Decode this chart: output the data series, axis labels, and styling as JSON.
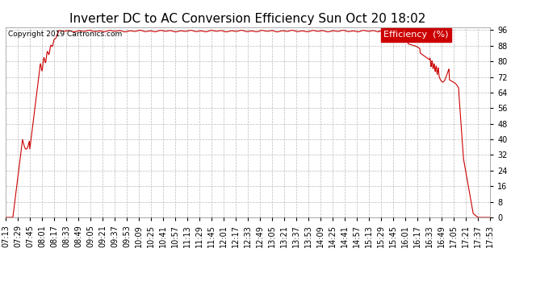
{
  "title": "Inverter DC to AC Conversion Efficiency Sun Oct 20 18:02",
  "copyright": "Copyright 2019 Cartronics.com",
  "legend_label": "Efficiency  (%)",
  "line_color": "#cc0000",
  "background_color": "#ffffff",
  "grid_color": "#bbbbbb",
  "ylim": [
    0.0,
    97.5
  ],
  "yticks": [
    0.0,
    8.0,
    16.0,
    24.0,
    32.0,
    40.0,
    48.0,
    56.0,
    64.0,
    72.0,
    80.0,
    88.0,
    96.0
  ],
  "xtick_labels": [
    "07:13",
    "07:29",
    "07:45",
    "08:01",
    "08:17",
    "08:33",
    "08:49",
    "09:05",
    "09:21",
    "09:37",
    "09:53",
    "10:09",
    "10:25",
    "10:41",
    "10:57",
    "11:13",
    "11:29",
    "11:45",
    "12:01",
    "12:17",
    "12:33",
    "12:49",
    "13:05",
    "13:21",
    "13:37",
    "13:53",
    "14:09",
    "14:25",
    "14:41",
    "14:57",
    "15:13",
    "15:29",
    "15:45",
    "16:01",
    "16:17",
    "16:33",
    "16:49",
    "17:05",
    "17:21",
    "17:37",
    "17:53"
  ],
  "title_fontsize": 11,
  "axis_fontsize": 7,
  "copyright_fontsize": 6.5,
  "legend_fontsize": 8
}
